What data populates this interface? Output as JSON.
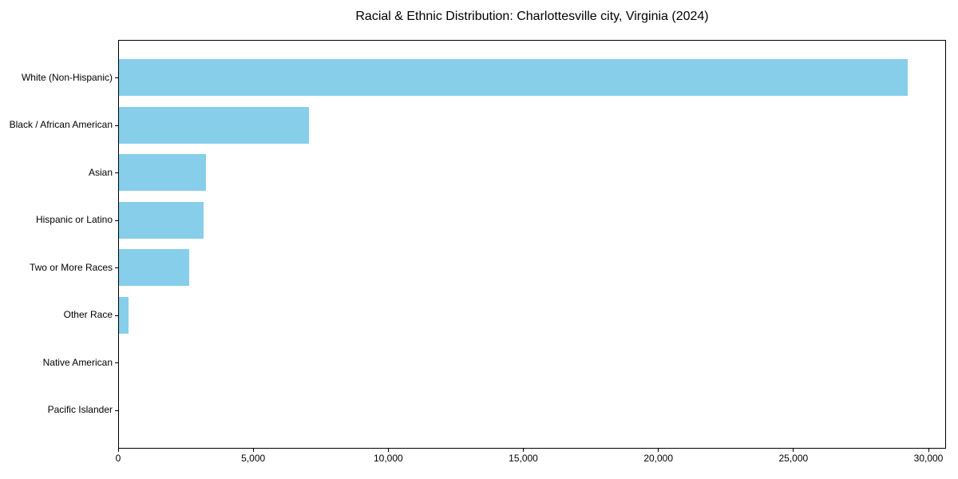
{
  "chart_data": {
    "type": "bar",
    "orientation": "horizontal",
    "title": "Racial & Ethnic Distribution: Charlottesville city, Virginia (2024)",
    "xlabel": "",
    "ylabel": "",
    "categories": [
      "White (Non-Hispanic)",
      "Black / African American",
      "Asian",
      "Hispanic or Latino",
      "Two or More Races",
      "Other Race",
      "Native American",
      "Pacific Islander"
    ],
    "values": [
      29190,
      7045,
      3220,
      3130,
      2610,
      350,
      0,
      0
    ],
    "xlim": [
      0,
      30650
    ],
    "x_ticks": [
      0,
      5000,
      10000,
      15000,
      20000,
      25000,
      30000
    ],
    "x_tick_labels": [
      "0",
      "5,000",
      "10,000",
      "15,000",
      "20,000",
      "25,000",
      "30,000"
    ],
    "grid": false,
    "legend": null,
    "bar_color": "#87CEEB",
    "axis_color": "#000000",
    "text_color": "#000000",
    "background_color": "#ffffff"
  }
}
